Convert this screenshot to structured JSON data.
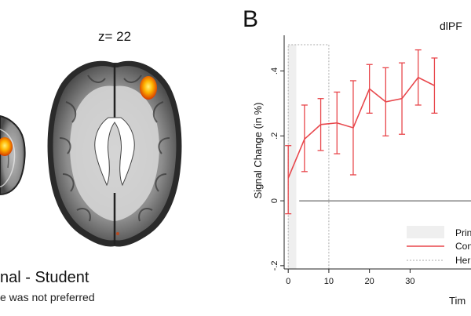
{
  "panel_a": {
    "slice_label": "z= 22",
    "caption": "nal - Student",
    "subcaption": "e was not preferred"
  },
  "panel_b": {
    "letter": "B",
    "title_fragment": "dlPF",
    "ylabel": "Signal Change (in %)",
    "xlabel_fragment": "Tim",
    "legend": [
      "Prin",
      "Con",
      "Her"
    ]
  },
  "chart_data": {
    "type": "line",
    "x": [
      0,
      4,
      8,
      12,
      16,
      20,
      24,
      28,
      32,
      36
    ],
    "series": [
      {
        "values": [
          0.07,
          0.19,
          0.235,
          0.24,
          0.225,
          0.345,
          0.305,
          0.315,
          0.38,
          0.355
        ],
        "lower": [
          -0.04,
          0.09,
          0.155,
          0.145,
          0.08,
          0.27,
          0.2,
          0.205,
          0.295,
          0.27
        ],
        "upper": [
          0.17,
          0.295,
          0.315,
          0.335,
          0.37,
          0.42,
          0.41,
          0.425,
          0.465,
          0.44
        ]
      }
    ],
    "xticks": [
      "0",
      "10",
      "20",
      "30"
    ],
    "yticks": [
      "-.2",
      "0",
      ".2",
      ".4"
    ],
    "xlim": [
      -1,
      45
    ],
    "ylim": [
      -0.21,
      0.51
    ],
    "shaded_interval": [
      0,
      2
    ],
    "dotted_interval": [
      0,
      10
    ],
    "line_color": "#e8474c",
    "shade_color": "#efefef"
  }
}
